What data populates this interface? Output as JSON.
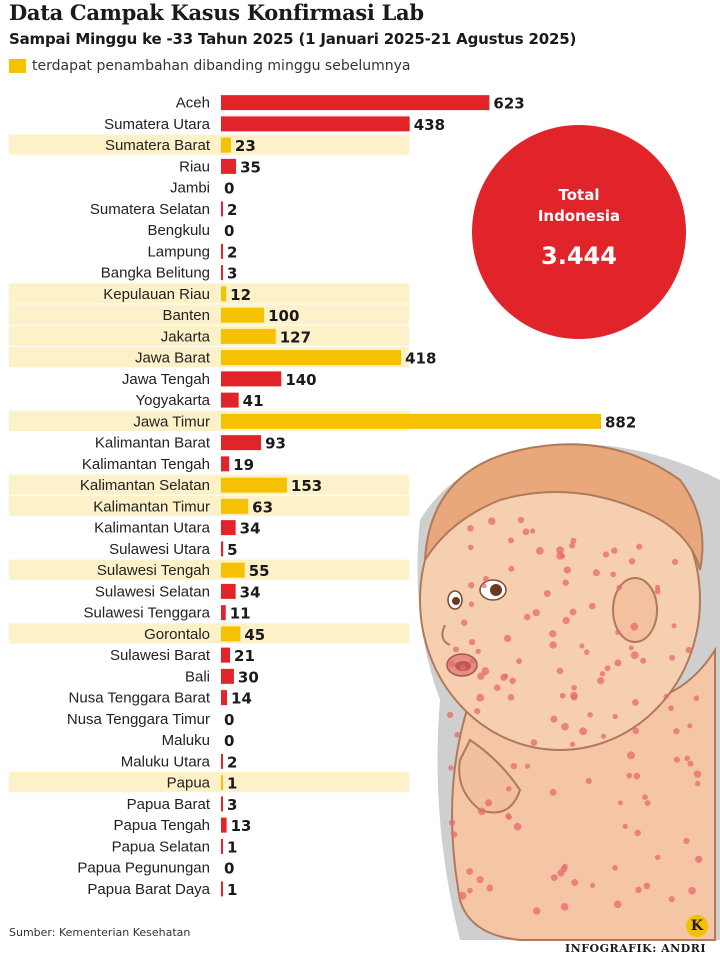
{
  "header": {
    "title": "Data Campak Kasus Konfirmasi Lab",
    "subtitle": "Sampai Minggu ke -33 Tahun 2025 (1 Januari 2025-21 Agustus 2025)",
    "legend": "terdapat penambahan dibanding minggu sebelumnya"
  },
  "colors": {
    "increase": "#f6c200",
    "normal": "#e0242a",
    "highlight_band": "#fdf1c9"
  },
  "total": {
    "label_line1": "Total",
    "label_line2": "Indonesia",
    "value": "3.444"
  },
  "chart_data": {
    "type": "bar",
    "orientation": "horizontal",
    "title": "Data Campak Kasus Konfirmasi Lab",
    "xlim": [
      0,
      882
    ],
    "categories": [
      "Aceh",
      "Sumatera Utara",
      "Sumatera Barat",
      "Riau",
      "Jambi",
      "Sumatera Selatan",
      "Bengkulu",
      "Lampung",
      "Bangka Belitung",
      "Kepulauan Riau",
      "Banten",
      "Jakarta",
      "Jawa Barat",
      "Jawa Tengah",
      "Yogyakarta",
      "Jawa Timur",
      "Kalimantan Barat",
      "Kalimantan Tengah",
      "Kalimantan Selatan",
      "Kalimantan Timur",
      "Kalimantan Utara",
      "Sulawesi Utara",
      "Sulawesi Tengah",
      "Sulawesi Selatan",
      "Sulawesi Tenggara",
      "Gorontalo",
      "Sulawesi Barat",
      "Bali",
      "Nusa Tenggara Barat",
      "Nusa Tenggara Timur",
      "Maluku",
      "Maluku Utara",
      "Papua",
      "Papua Barat",
      "Papua Tengah",
      "Papua Selatan",
      "Papua Pegunungan",
      "Papua Barat Daya"
    ],
    "values": [
      623,
      438,
      23,
      35,
      0,
      2,
      0,
      2,
      3,
      12,
      100,
      127,
      418,
      140,
      41,
      882,
      93,
      19,
      153,
      63,
      34,
      5,
      55,
      34,
      11,
      45,
      21,
      30,
      14,
      0,
      0,
      2,
      1,
      3,
      13,
      1,
      0,
      1
    ],
    "increase": [
      false,
      false,
      true,
      false,
      false,
      false,
      false,
      false,
      false,
      true,
      true,
      true,
      true,
      false,
      false,
      true,
      false,
      false,
      true,
      true,
      false,
      false,
      true,
      false,
      false,
      true,
      false,
      false,
      false,
      false,
      false,
      false,
      true,
      false,
      false,
      false,
      false,
      false
    ]
  },
  "footer": {
    "source": "Sumber: Kementerian Kesehatan",
    "credit": "INFOGRAFIK: ANDRI",
    "logo_letter": "K"
  }
}
